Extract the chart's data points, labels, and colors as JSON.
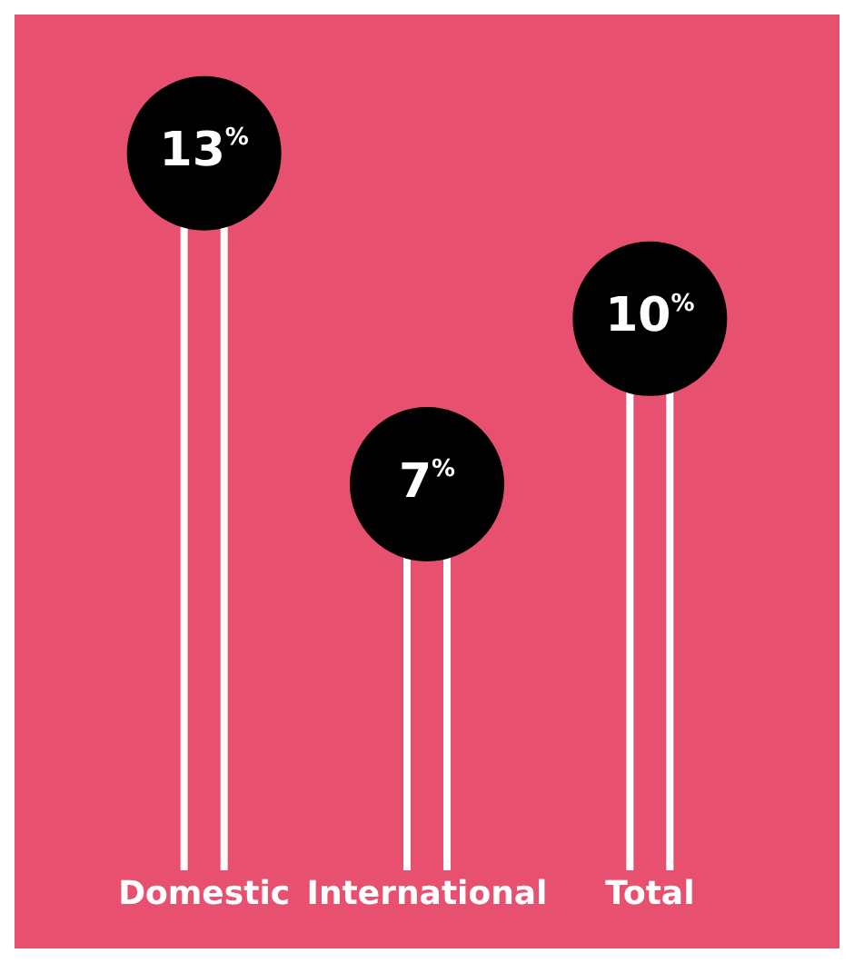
{
  "chart_data": {
    "type": "lollipop",
    "categories": [
      "Domestic",
      "International",
      "Total"
    ],
    "values": [
      13,
      7,
      10
    ],
    "value_labels": [
      "13%",
      "7%",
      "10%"
    ],
    "color": "#000000",
    "tick_labels": "x",
    "grid": false,
    "legend": false
  }
}
